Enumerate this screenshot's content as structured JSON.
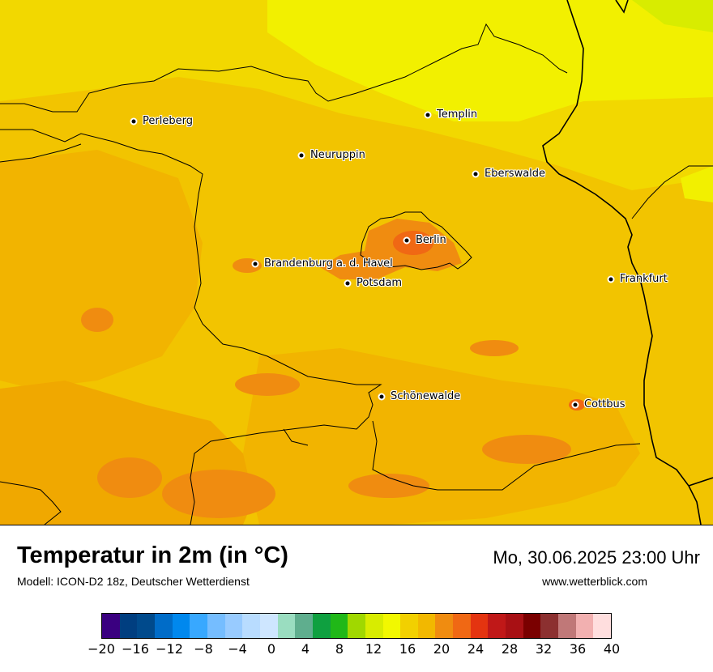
{
  "map": {
    "base_color": "#f2d000",
    "cities": [
      {
        "name": "Perleberg",
        "key": "perleberg"
      },
      {
        "name": "Templin",
        "key": "templin"
      },
      {
        "name": "Neuruppin",
        "key": "neuruppin"
      },
      {
        "name": "Eberswalde",
        "key": "eberswalde"
      },
      {
        "name": "Berlin",
        "key": "berlin"
      },
      {
        "name": "Brandenburg a. d. Havel",
        "key": "brandenburg"
      },
      {
        "name": "Potsdam",
        "key": "potsdam"
      },
      {
        "name": "Frankfurt",
        "key": "frankfurt"
      },
      {
        "name": "Schönewalde",
        "key": "schoenewalde"
      },
      {
        "name": "Cottbus",
        "key": "cottbus"
      }
    ]
  },
  "footer": {
    "title": "Temperatur in 2m (in °C)",
    "subtitle": "Modell: ICON-D2 18z, Deutscher Wetterdienst",
    "datetime": "Mo, 30.06.2025 23:00 Uhr",
    "website": "www.wetterblick.com"
  },
  "legend": {
    "min": -20,
    "max": 40,
    "colors": [
      "#3a0080",
      "#003e80",
      "#004a8c",
      "#006cc8",
      "#0088ee",
      "#38a8ff",
      "#75bdff",
      "#98cbff",
      "#b8dcff",
      "#cee6ff",
      "#9addc0",
      "#5fae8e",
      "#0fa040",
      "#20b818",
      "#a0d800",
      "#d8ec00",
      "#f2f800",
      "#f2d000",
      "#f2b800",
      "#f08c10",
      "#f06814",
      "#e43410",
      "#c01818",
      "#a81014",
      "#7a0000",
      "#8c3030",
      "#c07878",
      "#f2b0b0",
      "#ffdede"
    ],
    "tick_labels": [
      "−20",
      "−16",
      "−12",
      "−8",
      "−4",
      "0",
      "4",
      "8",
      "12",
      "16",
      "20",
      "24",
      "28",
      "32",
      "36",
      "40"
    ]
  }
}
